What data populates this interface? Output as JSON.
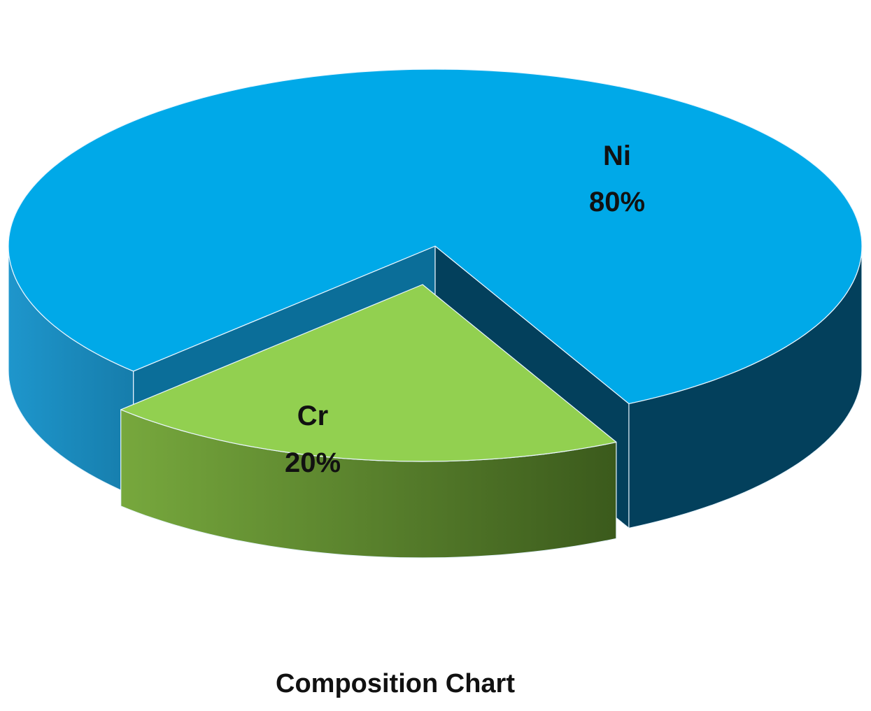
{
  "chart_data": {
    "type": "pie",
    "style": "3d-exploded",
    "title": "Composition Chart",
    "slices": [
      {
        "name": "Ni",
        "value": 80,
        "label": "80%",
        "exploded": false
      },
      {
        "name": "Cr",
        "value": 20,
        "label": "20%",
        "exploded": true
      }
    ],
    "legend": "none",
    "colors": {
      "Ni": {
        "top": "#00A9E8",
        "side_light": "#1E96CC",
        "side_dark": "#03405C",
        "cut_face": "#0B6E99"
      },
      "Cr": {
        "top": "#92D050",
        "side_light": "#77A83D",
        "side_dark": "#3B5A1C"
      },
      "edge": "#EAF6FF"
    }
  }
}
